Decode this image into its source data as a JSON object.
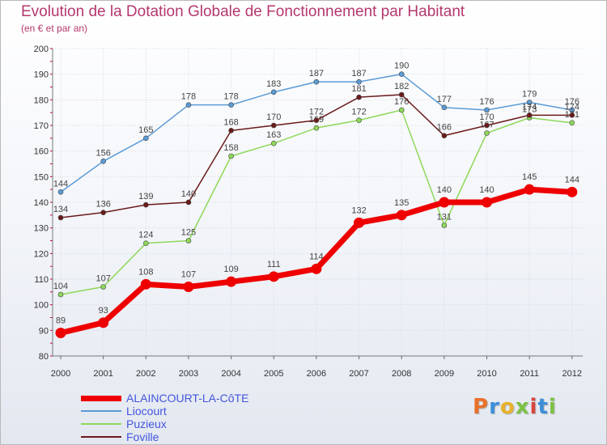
{
  "chart_data": {
    "type": "line",
    "title": "Evolution de la Dotation Globale de Fonctionnement par Habitant",
    "subtitle": "(en € et par an)",
    "xlabel": "",
    "ylabel": "",
    "categories": [
      "2000",
      "2001",
      "2002",
      "2003",
      "2004",
      "2005",
      "2006",
      "2007",
      "2008",
      "2009",
      "2010",
      "2011",
      "2012"
    ],
    "ylim": [
      80,
      200
    ],
    "yticks": [
      80,
      90,
      100,
      110,
      120,
      130,
      140,
      150,
      160,
      170,
      180,
      190,
      200
    ],
    "grid": true,
    "legend_position": "bottom-left",
    "series": [
      {
        "name": "Liocourt",
        "color": "#5b9bd5",
        "values": [
          144,
          156,
          165,
          178,
          178,
          183,
          187,
          187,
          190,
          177,
          176,
          179,
          176
        ],
        "labels": [
          "144",
          "156",
          "165",
          "178",
          "178",
          "183",
          "187",
          "187",
          "190",
          "177",
          "176",
          "179",
          "176"
        ]
      },
      {
        "name": "Puzieux",
        "color": "#8ed85a",
        "values": [
          104,
          107,
          124,
          125,
          158,
          163,
          169,
          172,
          176,
          131,
          167,
          173,
          171
        ],
        "labels": [
          "104",
          "107",
          "124",
          "125",
          "158",
          "163",
          "169",
          "172",
          "176",
          "131",
          "167",
          "173",
          "171"
        ]
      },
      {
        "name": "Foville",
        "color": "#6b1a1a",
        "values": [
          134,
          136,
          139,
          140,
          168,
          170,
          172,
          181,
          182,
          166,
          170,
          174,
          174
        ],
        "labels": [
          "134",
          "136",
          "139",
          "140",
          "168",
          "170",
          "172",
          "181",
          "182",
          "166",
          "170",
          "174",
          "174"
        ]
      },
      {
        "name": "ALAINCOURT-LA-CôTE",
        "color": "#ee0000",
        "values": [
          89,
          93,
          108,
          107,
          109,
          111,
          114,
          132,
          135,
          140,
          140,
          145,
          144
        ],
        "labels": [
          "89",
          "93",
          "108",
          "107",
          "109",
          "111",
          "114",
          "132",
          "135",
          "140",
          "140",
          "145",
          "144"
        ]
      }
    ],
    "legend": [
      {
        "name": "ALAINCOURT-LA-CôTE",
        "color": "#ee0000"
      },
      {
        "name": "Liocourt",
        "color": "#5b9bd5"
      },
      {
        "name": "Puzieux",
        "color": "#8ed85a"
      },
      {
        "name": "Foville",
        "color": "#6b1a1a"
      }
    ]
  },
  "branding": {
    "logo_text": "Proxiti",
    "colors": [
      "#e8712a",
      "#3b8fd9",
      "#e8b12a",
      "#7cc242",
      "#d9453b",
      "#3b8fd9",
      "#7cc242"
    ]
  }
}
